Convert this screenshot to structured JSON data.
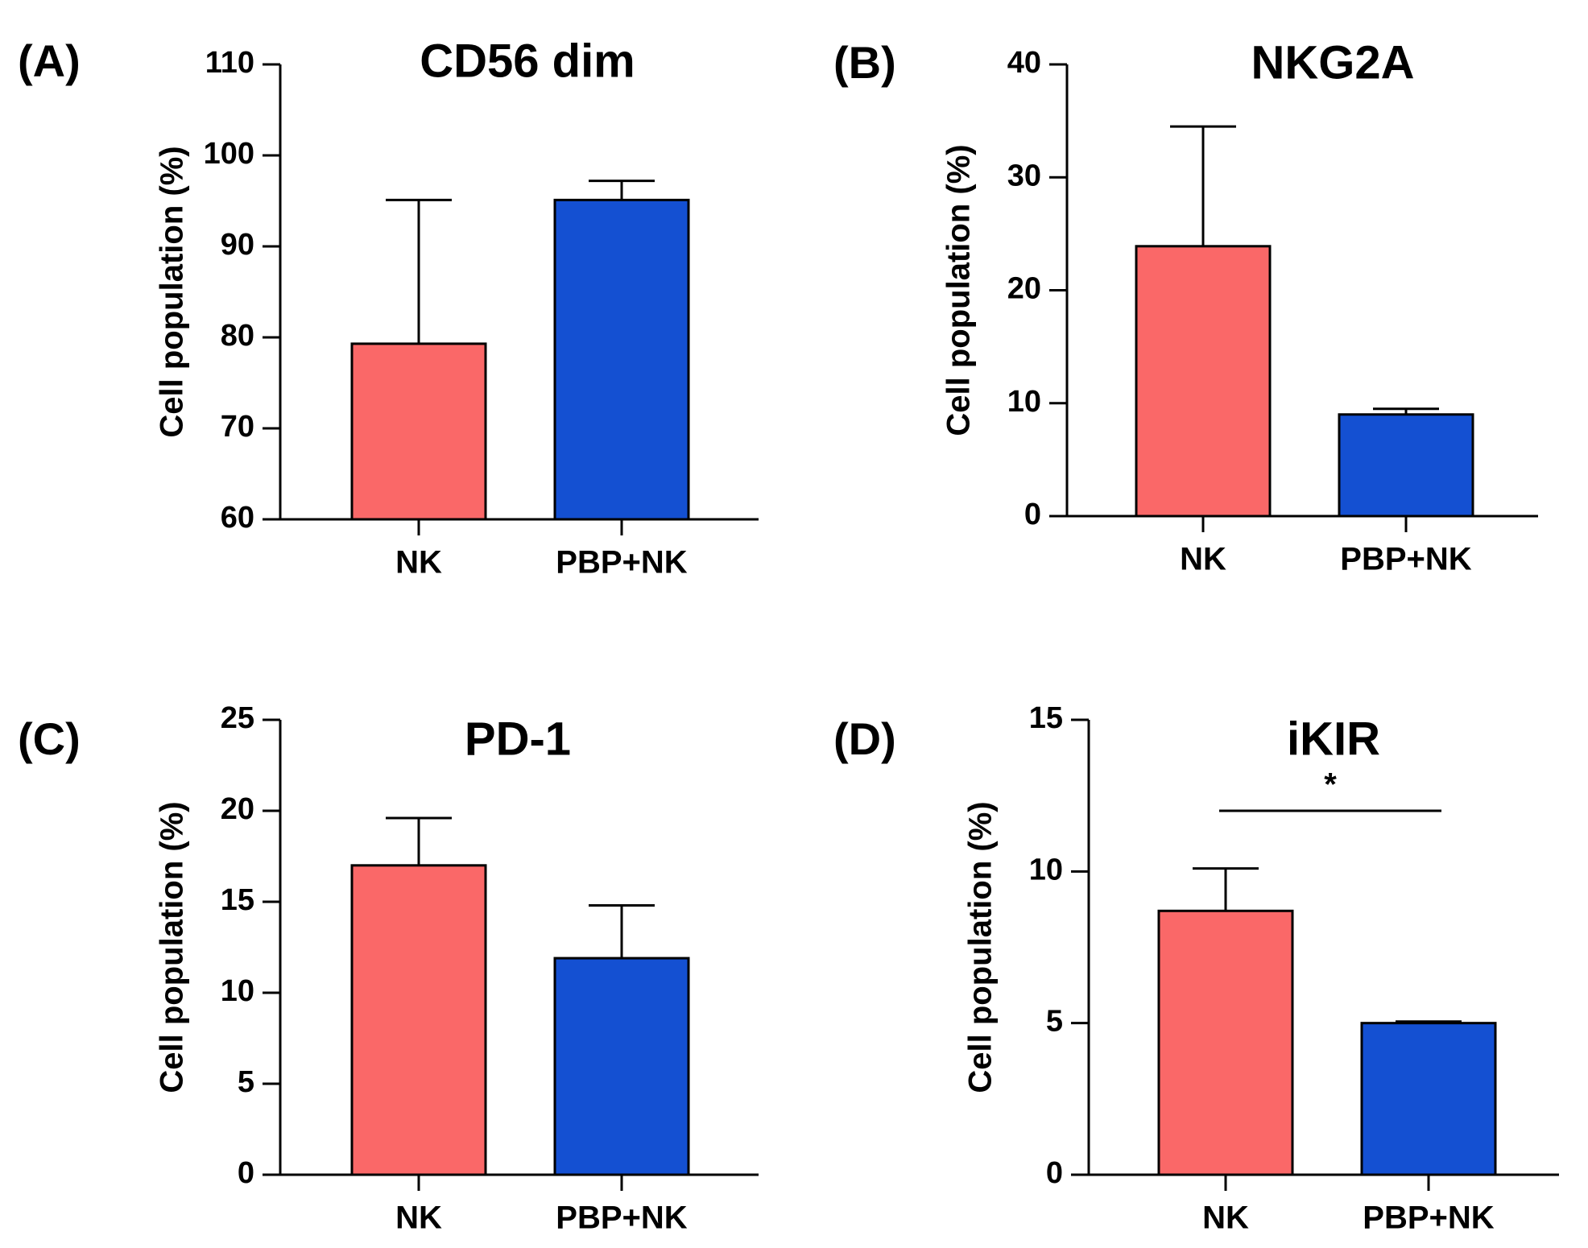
{
  "chart_data": [
    {
      "panel": "(A)",
      "type": "bar",
      "title": "CD56 dim",
      "ylabel": "Cell population (%)",
      "xlabel": "",
      "categories": [
        "NK",
        "PBP+NK"
      ],
      "values": [
        79.3,
        95.1
      ],
      "errors": [
        15.8,
        2.1
      ],
      "colors": [
        "#fa6868",
        "#1450d2"
      ],
      "ylim": [
        60,
        110
      ],
      "yticks": [
        60,
        70,
        80,
        90,
        100,
        110
      ],
      "grid": false,
      "significance": null
    },
    {
      "panel": "(B)",
      "type": "bar",
      "title": "NKG2A",
      "ylabel": "Cell population (%)",
      "xlabel": "",
      "categories": [
        "NK",
        "PBP+NK"
      ],
      "values": [
        23.9,
        9.0
      ],
      "errors": [
        10.6,
        0.5
      ],
      "colors": [
        "#fa6868",
        "#1450d2"
      ],
      "ylim": [
        0,
        40
      ],
      "yticks": [
        0,
        10,
        20,
        30,
        40
      ],
      "grid": false,
      "significance": null
    },
    {
      "panel": "(C)",
      "type": "bar",
      "title": "PD-1",
      "ylabel": "Cell population (%)",
      "xlabel": "",
      "categories": [
        "NK",
        "PBP+NK"
      ],
      "values": [
        17.0,
        11.9
      ],
      "errors": [
        2.6,
        2.9
      ],
      "colors": [
        "#fa6868",
        "#1450d2"
      ],
      "ylim": [
        0,
        25
      ],
      "yticks": [
        0,
        5,
        10,
        15,
        20,
        25
      ],
      "grid": false,
      "significance": null
    },
    {
      "panel": "(D)",
      "type": "bar",
      "title": "iKIR",
      "ylabel": "Cell population (%)",
      "xlabel": "",
      "categories": [
        "NK",
        "PBP+NK"
      ],
      "values": [
        8.7,
        5.0
      ],
      "errors": [
        1.4,
        0.05
      ],
      "colors": [
        "#fa6868",
        "#1450d2"
      ],
      "ylim": [
        0,
        15
      ],
      "yticks": [
        0,
        5,
        10,
        15
      ],
      "grid": false,
      "significance": {
        "between": [
          "NK",
          "PBP+NK"
        ],
        "label": "*",
        "y": 12
      }
    }
  ]
}
